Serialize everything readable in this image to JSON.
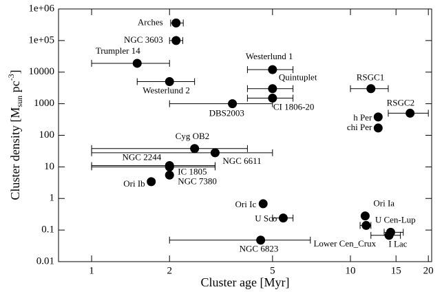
{
  "chart_data": {
    "type": "scatter",
    "xlabel": "Cluster age [Myr]",
    "ylabel": [
      "Cluster density [M",
      "sun",
      " pc",
      "-3",
      "]"
    ],
    "xscale": "log",
    "yscale": "log",
    "xlim": [
      0.745,
      20.6
    ],
    "ylim": [
      0.01,
      1000000
    ],
    "xticks": [
      1,
      2,
      5,
      10,
      15,
      20
    ],
    "yticks": [
      {
        "value": 1000000,
        "label": "1e+06"
      },
      {
        "value": 100000,
        "label": "1e+05"
      },
      10000,
      1000,
      100,
      10,
      1,
      0.1,
      0.01
    ],
    "color": "#000000",
    "point_labels": [
      "Arches",
      "NGC 3603",
      "Trumpler 14",
      "Westerlund 2",
      "Westerlund 1",
      "Quintuplet",
      "CI 1806-20",
      "DBS2003",
      "RSGC1",
      "RSGC2",
      "h Per",
      "chi Per",
      "Cyg OB2",
      "NGC 6611",
      "NGC 2244",
      "IC 1805",
      "NGC 7380",
      "Ori Ib",
      "Ori Ic",
      "U Sco",
      "NGC 6823",
      "Ori Ia",
      "U Cen-Lup",
      "Lower Cen_Crux",
      "I Lac"
    ],
    "x": [
      2.12,
      2.12,
      1.5,
      2.0,
      5.0,
      5.0,
      5.0,
      3.5,
      12,
      17,
      12.8,
      12.8,
      2.5,
      3.0,
      2.0,
      2.0,
      2.0,
      1.7,
      4.6,
      5.5,
      4.5,
      11.4,
      11.5,
      14.1,
      14.3
    ],
    "y": [
      360000,
      100000,
      19000,
      5000,
      12000,
      3000,
      1500,
      1000,
      3000,
      500,
      380,
      170,
      38,
      28,
      11,
      10,
      5.5,
      3.4,
      0.68,
      0.24,
      0.048,
      0.28,
      0.14,
      0.068,
      0.085
    ],
    "x_low": [
      2.02,
      2.0,
      1,
      1.5,
      4,
      4,
      4,
      2,
      10,
      14,
      null,
      null,
      1,
      1,
      1,
      1,
      null,
      null,
      null,
      5,
      2,
      null,
      10.9,
      12,
      13.5
    ],
    "x_high": [
      2.26,
      2.25,
      2,
      2.5,
      6,
      6,
      6,
      5,
      14,
      20,
      null,
      null,
      4,
      5,
      3,
      3,
      null,
      null,
      null,
      6,
      7,
      null,
      12,
      15.6,
      16
    ]
  }
}
